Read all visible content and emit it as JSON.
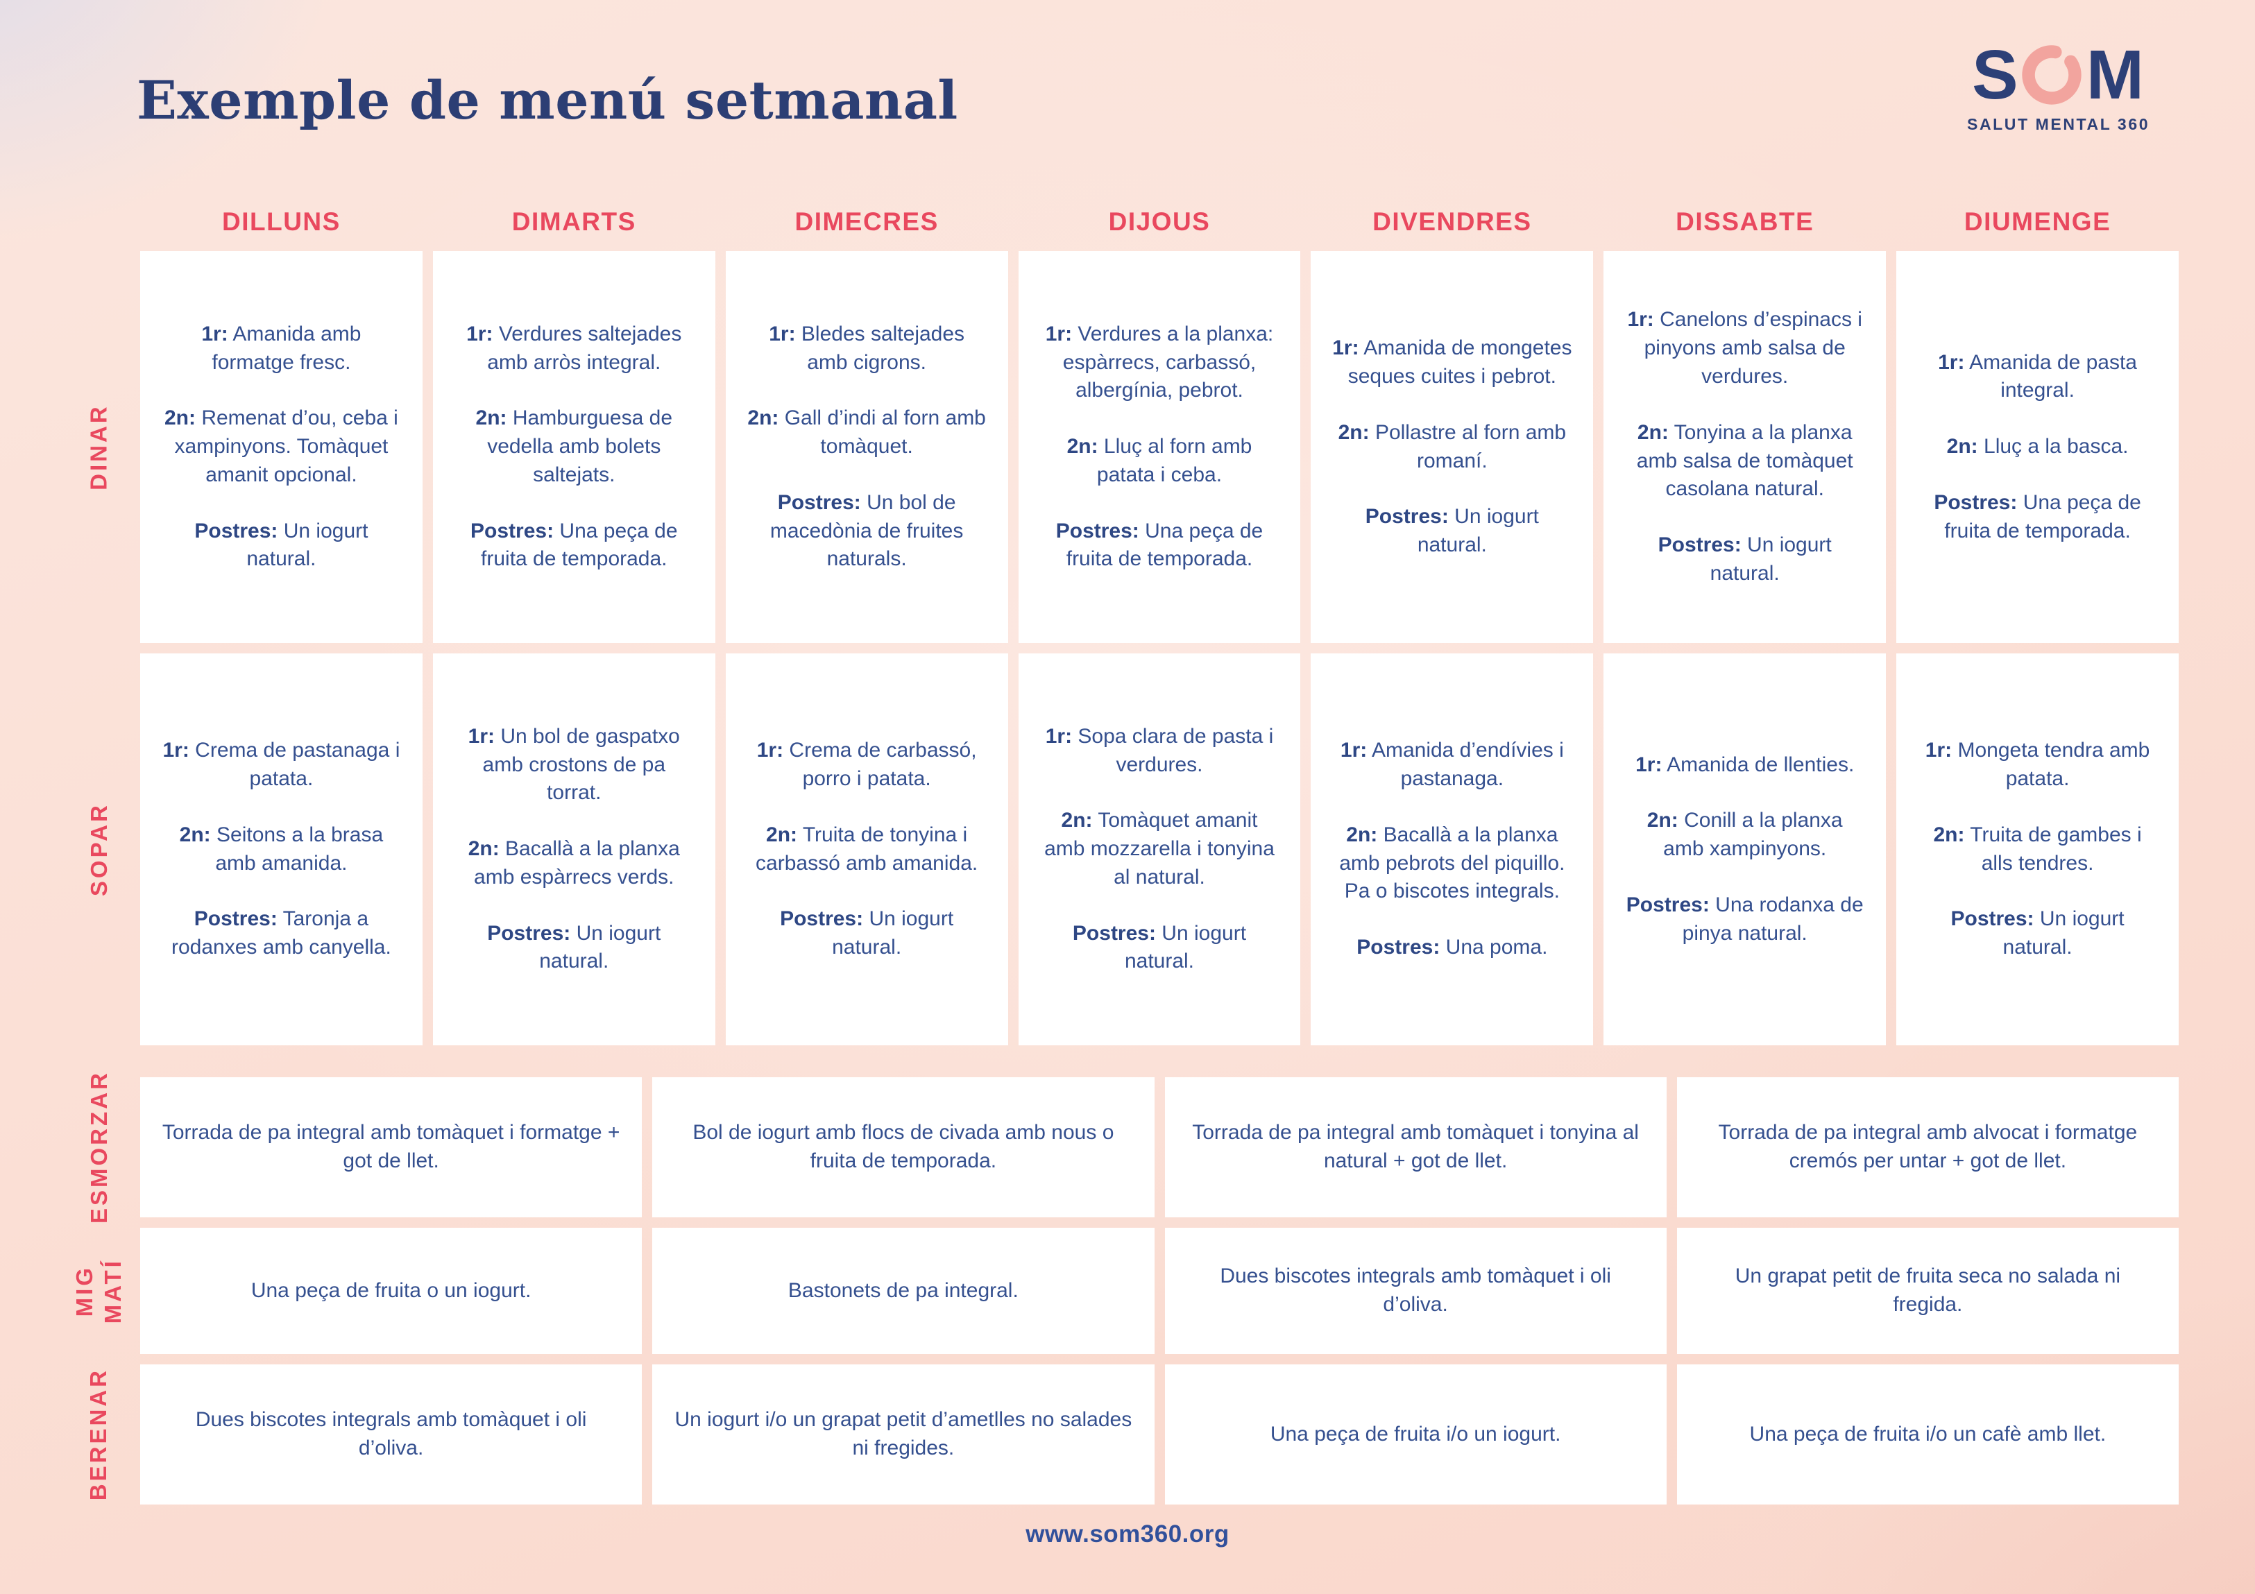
{
  "page": {
    "title": "Exemple de menú setmanal",
    "footer": "www.som360.org"
  },
  "logo": {
    "letters": [
      "S",
      "O",
      "M"
    ],
    "subtitle": "SALUT MENTAL 360",
    "navy": "#2d4077",
    "pink": "#f2a49e"
  },
  "colors": {
    "accent_red": "#e9485e",
    "body_navy": "#35508f",
    "title_navy": "#2c3e74",
    "cell_background": "#ffffff",
    "page_background": "#fbdfd5"
  },
  "table": {
    "days": [
      "DILLUNS",
      "DIMARTS",
      "DIMECRES",
      "DIJOUS",
      "DIVENDRES",
      "DISSABTE",
      "DIUMENGE"
    ],
    "meal_rows": [
      {
        "key": "dinar",
        "label": "DINAR",
        "cells": [
          {
            "parts": [
              {
                "label": "1r:",
                "text": "Amanida amb formatge fresc."
              },
              {
                "label": "2n:",
                "text": "Remenat d’ou, ceba i xampinyons. Tomàquet amanit opcional."
              },
              {
                "label": "Postres:",
                "text": "Un iogurt natural."
              }
            ]
          },
          {
            "parts": [
              {
                "label": "1r:",
                "text": "Verdures saltejades amb arròs integral."
              },
              {
                "label": "2n:",
                "text": "Hamburguesa de vedella amb bolets saltejats."
              },
              {
                "label": "Postres:",
                "text": "Una peça de fruita de temporada."
              }
            ]
          },
          {
            "parts": [
              {
                "label": "1r:",
                "text": "Bledes saltejades amb cigrons."
              },
              {
                "label": "2n:",
                "text": "Gall d’indi al forn amb tomàquet."
              },
              {
                "label": "Postres:",
                "text": "Un bol de macedònia de fruites naturals."
              }
            ]
          },
          {
            "parts": [
              {
                "label": "1r:",
                "text": "Verdures a la planxa: espàrrecs, carbassó, albergínia, pebrot."
              },
              {
                "label": "2n:",
                "text": "Lluç al forn amb patata i ceba."
              },
              {
                "label": "Postres:",
                "text": "Una peça de fruita de temporada."
              }
            ]
          },
          {
            "parts": [
              {
                "label": "1r:",
                "text": "Amanida de mongetes seques cuites i pebrot."
              },
              {
                "label": "2n:",
                "text": "Pollastre al forn amb romaní."
              },
              {
                "label": "Postres:",
                "text": "Un iogurt natural."
              }
            ]
          },
          {
            "parts": [
              {
                "label": "1r:",
                "text": "Canelons d’espinacs i pinyons amb salsa de verdures."
              },
              {
                "label": "2n:",
                "text": "Tonyina a la planxa amb salsa de tomàquet casolana natural."
              },
              {
                "label": "Postres:",
                "text": "Un iogurt natural."
              }
            ]
          },
          {
            "parts": [
              {
                "label": "1r:",
                "text": "Amanida de pasta integral."
              },
              {
                "label": "2n:",
                "text": "Lluç a la basca."
              },
              {
                "label": "Postres:",
                "text": "Una peça de fruita de temporada."
              }
            ]
          }
        ]
      },
      {
        "key": "sopar",
        "label": "SOPAR",
        "cells": [
          {
            "parts": [
              {
                "label": "1r:",
                "text": "Crema de pastanaga i patata."
              },
              {
                "label": "2n:",
                "text": "Seitons a la brasa amb amanida."
              },
              {
                "label": "Postres:",
                "text": "Taronja a rodanxes amb canyella."
              }
            ]
          },
          {
            "parts": [
              {
                "label": "1r:",
                "text": "Un bol de gaspatxo amb crostons de pa torrat."
              },
              {
                "label": "2n:",
                "text": "Bacallà a la planxa amb espàrrecs verds."
              },
              {
                "label": "Postres:",
                "text": "Un iogurt natural."
              }
            ]
          },
          {
            "parts": [
              {
                "label": "1r:",
                "text": "Crema de carbassó, porro i patata."
              },
              {
                "label": "2n:",
                "text": "Truita de tonyina i carbassó amb amanida."
              },
              {
                "label": "Postres:",
                "text": "Un iogurt natural."
              }
            ]
          },
          {
            "parts": [
              {
                "label": "1r:",
                "text": "Sopa clara de pasta i verdures."
              },
              {
                "label": "2n:",
                "text": "Tomàquet amanit amb mozzarella i tonyina al natural."
              },
              {
                "label": "Postres:",
                "text": "Un iogurt natural."
              }
            ]
          },
          {
            "parts": [
              {
                "label": "1r:",
                "text": "Amanida d’endívies i pastanaga."
              },
              {
                "label": "2n:",
                "text": "Bacallà a la planxa amb pebrots del piquillo. Pa o biscotes integrals."
              },
              {
                "label": "Postres:",
                "text": "Una poma."
              }
            ]
          },
          {
            "parts": [
              {
                "label": "1r:",
                "text": "Amanida de llenties."
              },
              {
                "label": "2n:",
                "text": "Conill a la planxa amb xampinyons."
              },
              {
                "label": "Postres:",
                "text": "Una rodanxa de pinya natural."
              }
            ]
          },
          {
            "parts": [
              {
                "label": "1r:",
                "text": "Mongeta tendra amb patata."
              },
              {
                "label": "2n:",
                "text": "Truita de gambes i alls tendres."
              },
              {
                "label": "Postres:",
                "text": "Un iogurt natural."
              }
            ]
          }
        ]
      }
    ],
    "snack_rows": [
      {
        "key": "esmorzar",
        "label": "ESMORZAR",
        "cells": [
          "Torrada de pa integral amb tomàquet i formatge + got de llet.",
          "Bol de iogurt amb flocs de civada amb nous o fruita de temporada.",
          "Torrada de pa integral amb tomàquet i tonyina al natural + got de llet.",
          "Torrada de pa integral amb alvocat i formatge cremós per untar + got de llet."
        ]
      },
      {
        "key": "migmati",
        "label": "MIG\nMATÍ",
        "cells": [
          "Una peça de fruita o un iogurt.",
          "Bastonets de pa integral.",
          "Dues biscotes integrals amb tomàquet i oli d’oliva.",
          "Un grapat petit de fruita seca no salada ni fregida."
        ]
      },
      {
        "key": "berenar",
        "label": "BERENAR",
        "cells": [
          "Dues biscotes integrals amb tomàquet i oli d’oliva.",
          "Un iogurt i/o un grapat petit d’ametlles no salades ni fregides.",
          "Una peça de fruita i/o un iogurt.",
          "Una peça de fruita i/o un cafè amb llet."
        ]
      }
    ]
  }
}
